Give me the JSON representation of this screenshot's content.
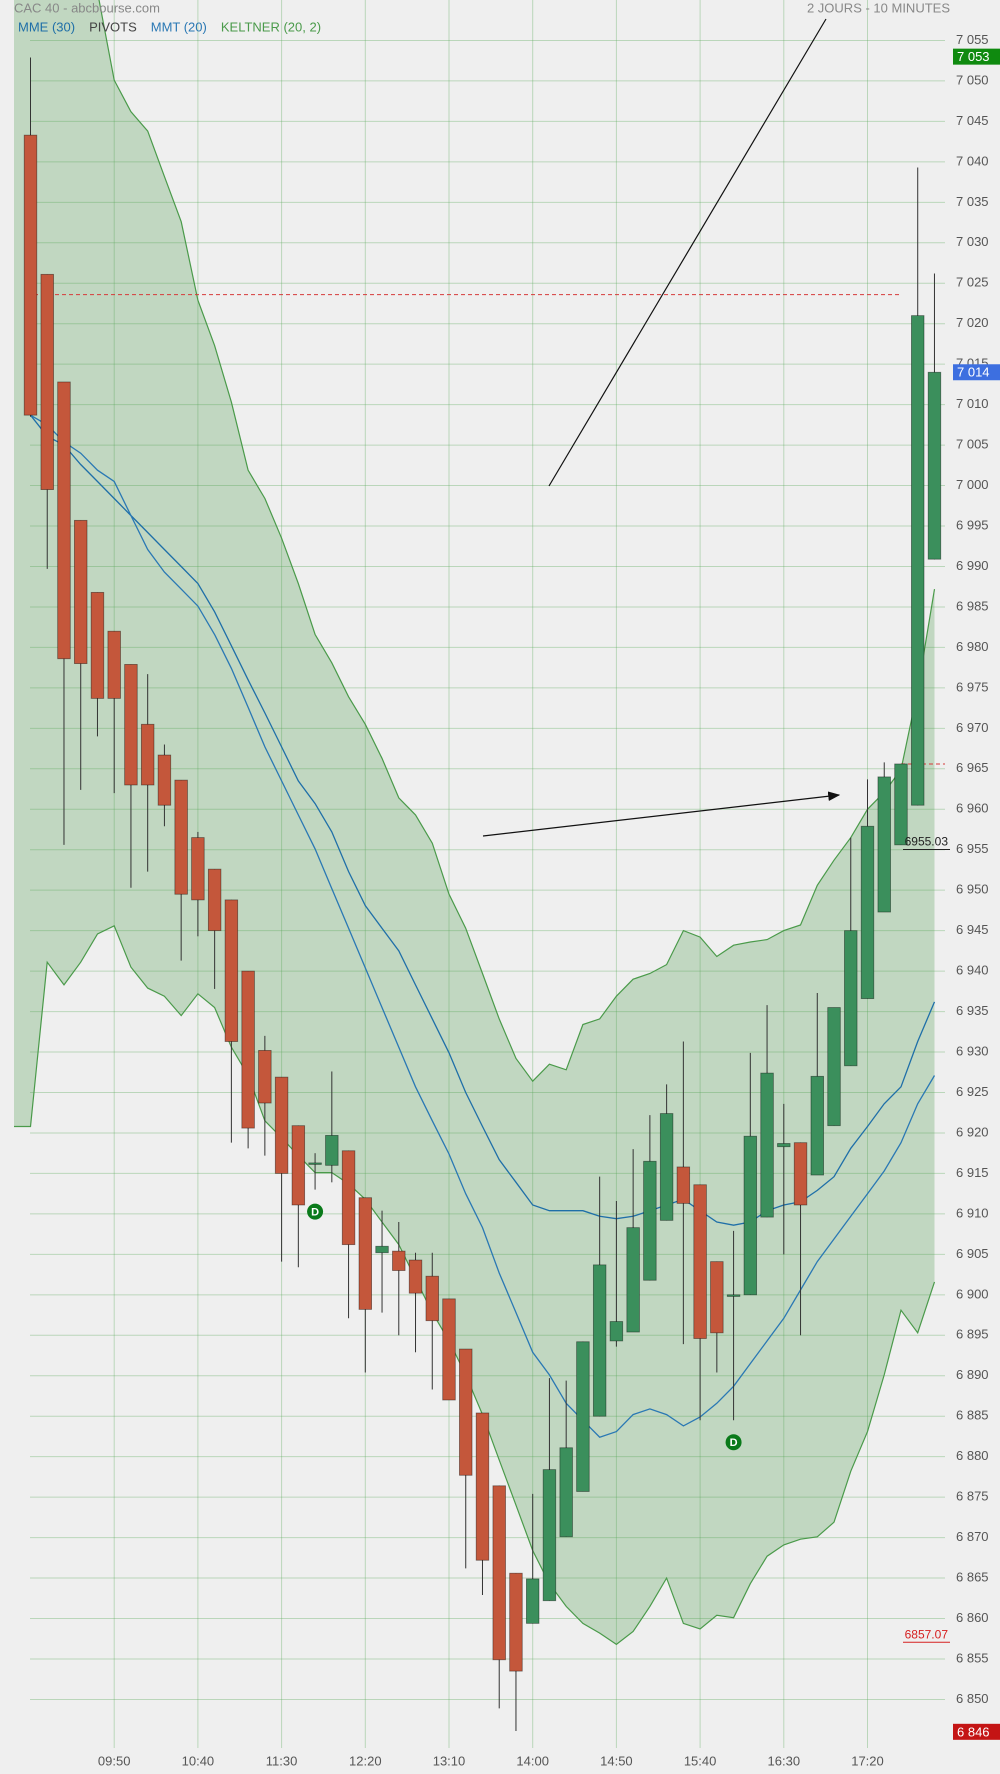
{
  "chart_data": {
    "type": "candlestick",
    "title": "CAC 40 - abcbourse.com",
    "subtitle": "2 JOURS - 10 MINUTES",
    "categories": [
      null,
      null,
      null,
      null,
      null,
      "09:50",
      null,
      null,
      null,
      null,
      "10:40",
      null,
      null,
      null,
      null,
      "11:30",
      null,
      null,
      null,
      null,
      "12:20",
      null,
      null,
      null,
      null,
      "13:10",
      null,
      null,
      null,
      null,
      "14:00",
      null,
      null,
      null,
      null,
      "14:50",
      null,
      null,
      null,
      null,
      "15:40",
      null,
      null,
      null,
      null,
      "16:30",
      null,
      null,
      null,
      null,
      "17:20",
      null,
      null,
      null,
      null
    ],
    "open": [
      7043.3,
      7026.1,
      7012.8,
      6995.7,
      6986.8,
      6982.0,
      6977.9,
      6970.5,
      6966.7,
      6963.6,
      6956.5,
      6952.6,
      6948.8,
      6940.0,
      6930.2,
      6926.9,
      6920.9,
      6916.2,
      6916.0,
      6917.8,
      6912.0,
      6905.2,
      6905.4,
      6904.3,
      6902.3,
      6899.5,
      6893.3,
      6885.4,
      6876.4,
      6865.6,
      6859.4,
      6862.2,
      6870.1,
      6875.7,
      6885.0,
      6894.3,
      6895.4,
      6901.8,
      6909.2,
      6915.8,
      6913.6,
      6904.1,
      6899.8,
      6900.0,
      6909.6,
      6918.3,
      6918.8,
      6914.8,
      6920.9,
      6928.3,
      6936.6,
      6947.3,
      6955.6,
      6960.5,
      6990.9
    ],
    "high": [
      7052.9,
      7026.1,
      7012.8,
      6995.7,
      6986.8,
      6982.0,
      6977.9,
      6976.7,
      6968.0,
      6963.6,
      6957.2,
      6952.6,
      6948.8,
      6940.0,
      6932.0,
      6926.9,
      6920.9,
      6917.5,
      6927.6,
      6917.8,
      6912.0,
      6910.4,
      6909.0,
      6905.2,
      6905.2,
      6899.5,
      6893.3,
      6885.4,
      6876.4,
      6865.6,
      6875.4,
      6889.7,
      6889.4,
      6894.2,
      6914.6,
      6911.6,
      6918.0,
      6922.2,
      6926.0,
      6931.3,
      6913.6,
      6904.1,
      6907.9,
      6929.9,
      6935.8,
      6923.6,
      6918.8,
      6937.3,
      6935.5,
      6956.5,
      6963.7,
      6965.8,
      6965.6,
      7039.3,
      7026.2
    ],
    "low": [
      7008.5,
      6989.7,
      6955.6,
      6962.4,
      6969.0,
      6962.0,
      6950.3,
      6952.3,
      6957.9,
      6941.3,
      6944.3,
      6937.8,
      6918.8,
      6918.1,
      6917.2,
      6904.1,
      6903.4,
      6913.0,
      6913.9,
      6897.1,
      6890.4,
      6897.8,
      6895.0,
      6892.9,
      6888.3,
      6887.0,
      6866.2,
      6862.9,
      6848.9,
      6846.1,
      6859.4,
      6862.2,
      6870.1,
      6875.7,
      6885.0,
      6893.6,
      6895.4,
      6901.8,
      6909.2,
      6893.9,
      6884.5,
      6890.4,
      6884.5,
      6900.0,
      6909.6,
      6905.0,
      6895.0,
      6914.8,
      6920.9,
      6928.3,
      6936.6,
      6947.3,
      6955.6,
      6960.5,
      6990.9
    ],
    "close": [
      7008.7,
      6999.5,
      6978.6,
      6978.0,
      6973.7,
      6973.7,
      6963.0,
      6963.0,
      6960.5,
      6949.5,
      6948.8,
      6945.0,
      6931.3,
      6920.6,
      6923.7,
      6915.0,
      6911.1,
      6916.3,
      6919.7,
      6906.2,
      6898.2,
      6906.0,
      6903.0,
      6900.2,
      6896.8,
      6887.0,
      6877.7,
      6867.2,
      6854.9,
      6853.5,
      6864.9,
      6878.4,
      6881.1,
      6894.2,
      6903.7,
      6896.7,
      6908.3,
      6916.5,
      6922.4,
      6911.3,
      6894.6,
      6895.3,
      6900.0,
      6919.6,
      6927.4,
      6918.7,
      6911.1,
      6927.0,
      6935.5,
      6945.0,
      6957.9,
      6964.0,
      6965.6,
      7021.0,
      7014.0
    ],
    "up_color": "#3b8f5c",
    "down_color": "#c4573b",
    "ylim": [
      6844,
      7060
    ],
    "yticks": [
      {
        "value": 6850,
        "label": "6 850"
      },
      {
        "value": 6855,
        "label": "6 855"
      },
      {
        "value": 6860,
        "label": "6 860"
      },
      {
        "value": 6865,
        "label": "6 865"
      },
      {
        "value": 6870,
        "label": "6 870"
      },
      {
        "value": 6875,
        "label": "6 875"
      },
      {
        "value": 6880,
        "label": "6 880"
      },
      {
        "value": 6885,
        "label": "6 885"
      },
      {
        "value": 6890,
        "label": "6 890"
      },
      {
        "value": 6895,
        "label": "6 895"
      },
      {
        "value": 6900,
        "label": "6 900"
      },
      {
        "value": 6905,
        "label": "6 905"
      },
      {
        "value": 6910,
        "label": "6 910"
      },
      {
        "value": 6915,
        "label": "6 915"
      },
      {
        "value": 6920,
        "label": "6 920"
      },
      {
        "value": 6925,
        "label": "6 925"
      },
      {
        "value": 6930,
        "label": "6 930"
      },
      {
        "value": 6935,
        "label": "6 935"
      },
      {
        "value": 6940,
        "label": "6 940"
      },
      {
        "value": 6945,
        "label": "6 945"
      },
      {
        "value": 6950,
        "label": "6 950"
      },
      {
        "value": 6955,
        "label": "6 955"
      },
      {
        "value": 6960,
        "label": "6 960"
      },
      {
        "value": 6965,
        "label": "6 965"
      },
      {
        "value": 6970,
        "label": "6 970"
      },
      {
        "value": 6975,
        "label": "6 975"
      },
      {
        "value": 6980,
        "label": "6 980"
      },
      {
        "value": 6985,
        "label": "6 985"
      },
      {
        "value": 6990,
        "label": "6 990"
      },
      {
        "value": 6995,
        "label": "6 995"
      },
      {
        "value": 7000,
        "label": "7 000"
      },
      {
        "value": 7005,
        "label": "7 005"
      },
      {
        "value": 7010,
        "label": "7 010"
      },
      {
        "value": 7015,
        "label": "7 015"
      },
      {
        "value": 7020,
        "label": "7 020"
      },
      {
        "value": 7025,
        "label": "7 025"
      },
      {
        "value": 7030,
        "label": "7 030"
      },
      {
        "value": 7035,
        "label": "7 035"
      },
      {
        "value": 7040,
        "label": "7 040"
      },
      {
        "value": 7045,
        "label": "7 045"
      },
      {
        "value": 7050,
        "label": "7 050"
      },
      {
        "value": 7055,
        "label": "7 055"
      }
    ],
    "grid": true,
    "series": [
      {
        "name": "MME (30)",
        "color": "#1f6fa8",
        "values": [
          7008.7,
          7006.1,
          7005.0,
          7002.6,
          7000.5,
          6998.4,
          6996.3,
          6994.2,
          6992.1,
          6990.0,
          6987.9,
          6984.4,
          6980.2,
          6976.0,
          6971.9,
          6967.7,
          6963.5,
          6960.7,
          6957.2,
          6952.3,
          6948.1,
          6945.3,
          6942.5,
          6938.3,
          6934.1,
          6929.9,
          6925.0,
          6920.8,
          6916.7,
          6913.9,
          6911.1,
          6910.4,
          6910.4,
          6910.4,
          6909.7,
          6909.4,
          6909.7,
          6910.4,
          6911.1,
          6911.8,
          6910.4,
          6909.0,
          6908.6,
          6909.0,
          6910.4,
          6911.1,
          6911.5,
          6912.9,
          6914.6,
          6918.1,
          6920.8,
          6923.6,
          6925.7,
          6931.3,
          6936.2
        ]
      },
      {
        "name": "MMT (20)",
        "color": "#2a78b4",
        "values": [
          7008.7,
          7007.5,
          7005.4,
          7004.0,
          7001.9,
          7000.5,
          6996.3,
          6992.1,
          6989.3,
          6987.2,
          6985.1,
          6981.6,
          6977.4,
          6972.6,
          6967.7,
          6963.5,
          6959.3,
          6955.1,
          6950.2,
          6945.3,
          6940.4,
          6935.5,
          6930.6,
          6925.7,
          6921.5,
          6917.4,
          6912.5,
          6908.3,
          6902.7,
          6897.8,
          6892.9,
          6890.1,
          6886.6,
          6884.5,
          6882.4,
          6883.1,
          6885.2,
          6885.9,
          6885.2,
          6883.8,
          6884.9,
          6886.6,
          6888.7,
          6891.5,
          6894.3,
          6897.1,
          6900.6,
          6904.1,
          6906.9,
          6909.7,
          6912.5,
          6915.3,
          6918.8,
          6923.6,
          6927.1
        ]
      }
    ],
    "pivots": {
      "name": "PIVOTS",
      "color": "#d63a3a",
      "levels": [
        7023.6,
        6965.6
      ]
    },
    "keltner": {
      "name": "KELTNER (20, 2)",
      "color": "#4a9a4a",
      "upper": [
        7068,
        7066,
        7064,
        7062,
        7061,
        7050.1,
        7046.2,
        7043.8,
        7038.2,
        7032.6,
        7022.9,
        7017.3,
        7010.3,
        7001.9,
        6998.4,
        6993.5,
        6987.9,
        6981.6,
        6978.1,
        6973.9,
        6970.5,
        6966.3,
        6961.4,
        6959.3,
        6955.8,
        6949.5,
        6945.3,
        6939.7,
        6934.1,
        6929.2,
        6926.4,
        6928.5,
        6927.8,
        6933.4,
        6934.1,
        6936.9,
        6939,
        6939.7,
        6940.8,
        6945,
        6944.2,
        6941.8,
        6943.2,
        6943.6,
        6943.9,
        6945,
        6945.7,
        6950.6,
        6953.7,
        6956.5,
        6960,
        6962.1,
        6964.9,
        6974.7,
        6987.2
      ],
      "lower": [
        6920.8,
        6941.1,
        6938.3,
        6941.1,
        6944.6,
        6945.6,
        6940.5,
        6937.9,
        6936.9,
        6934.5,
        6937.2,
        6935.5,
        6930.6,
        6927.1,
        6921.5,
        6919.4,
        6917.2,
        6915.1,
        6915.1,
        6913.7,
        6911.8,
        6909,
        6906.2,
        6902,
        6897.8,
        6894.3,
        6890.1,
        6885.2,
        6879.6,
        6874,
        6868.4,
        6864.3,
        6861.5,
        6859.4,
        6858.2,
        6856.8,
        6858.4,
        6861.5,
        6865,
        6859.4,
        6858.7,
        6860.4,
        6860.1,
        6864.3,
        6867.7,
        6869.1,
        6869.8,
        6870.1,
        6871.9,
        6878.2,
        6883.1,
        6890.1,
        6898.1,
        6895.3,
        6901.6
      ]
    },
    "levels": [
      {
        "value": 6955.03,
        "color": "#222222"
      },
      {
        "value": 6857.07,
        "color": "#d62020"
      }
    ],
    "price_markers": [
      {
        "value": 7053,
        "label": "7 053",
        "color": "#0f8a0f"
      },
      {
        "value": 7014,
        "label": "7 014",
        "color": "#3d6fe0"
      },
      {
        "value": 6846,
        "label": "6 846",
        "color": "#c41414"
      }
    ],
    "events": [
      null,
      null,
      null,
      null,
      null,
      null,
      null,
      null,
      null,
      null,
      null,
      null,
      null,
      null,
      null,
      null,
      null,
      "D",
      null,
      null,
      null,
      null,
      null,
      null,
      null,
      null,
      null,
      null,
      null,
      null,
      null,
      null,
      null,
      null,
      null,
      null,
      null,
      null,
      null,
      null,
      null,
      null,
      "D",
      null,
      null,
      null,
      null,
      null,
      null,
      null,
      null,
      null,
      null,
      null,
      null
    ]
  }
}
